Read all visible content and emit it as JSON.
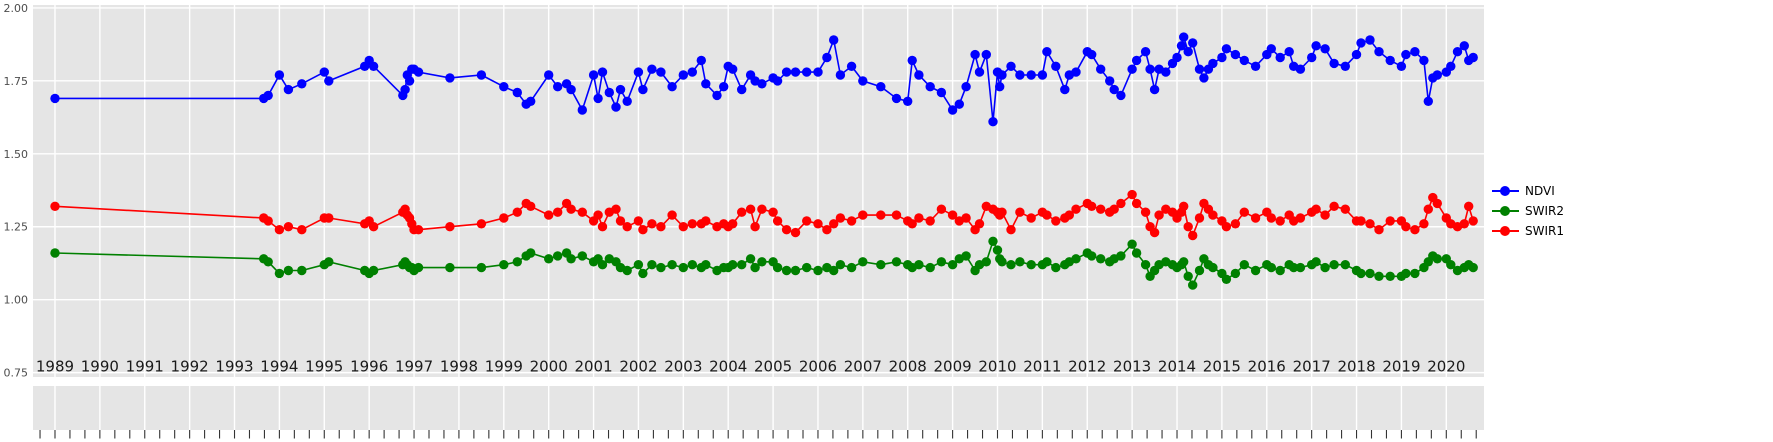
{
  "chart_data": {
    "type": "line",
    "title": "",
    "xlabel": "",
    "ylabel": "",
    "grid": true,
    "panel_background": "#E5E5E5",
    "gridline_color": "#FFFFFF",
    "tick_label_color": "#4d4d4d",
    "x_label_color": "#1a1a1a",
    "xlim": [
      1988.51,
      2020.84
    ],
    "ylim": [
      0.735,
      2.01
    ],
    "x_ticks": [
      1989,
      1990,
      1991,
      1992,
      1993,
      1994,
      1995,
      1996,
      1997,
      1998,
      1999,
      2000,
      2001,
      2002,
      2003,
      2004,
      2005,
      2006,
      2007,
      2008,
      2009,
      2010,
      2011,
      2012,
      2013,
      2014,
      2015,
      2016,
      2017,
      2018,
      2019,
      2020
    ],
    "y_ticks": [
      2.0,
      1.75,
      1.5,
      1.25,
      1.0,
      0.75
    ],
    "y_tick_labels": [
      "2.00",
      "1.75",
      "1.50",
      "1.25",
      "1.00",
      "0.75"
    ],
    "legend": {
      "position": "right",
      "entries": [
        "NDVI",
        "SWIR2",
        "SWIR1"
      ]
    },
    "x": [
      1989.0,
      1993.65,
      1993.75,
      1994.0,
      1994.2,
      1994.5,
      1995.0,
      1995.1,
      1995.9,
      1996.0,
      1996.1,
      1996.75,
      1996.8,
      1996.85,
      1996.9,
      1996.95,
      1997.0,
      1997.1,
      1997.8,
      1998.5,
      1999.0,
      1999.3,
      1999.5,
      1999.6,
      2000.0,
      2000.2,
      2000.4,
      2000.5,
      2000.75,
      2001.0,
      2001.1,
      2001.2,
      2001.35,
      2001.5,
      2001.6,
      2001.75,
      2002.0,
      2002.1,
      2002.3,
      2002.5,
      2002.75,
      2003.0,
      2003.2,
      2003.4,
      2003.5,
      2003.75,
      2003.9,
      2004.0,
      2004.1,
      2004.3,
      2004.5,
      2004.6,
      2004.75,
      2005.0,
      2005.1,
      2005.3,
      2005.5,
      2005.75,
      2006.0,
      2006.2,
      2006.35,
      2006.5,
      2006.75,
      2007.0,
      2007.4,
      2007.75,
      2008.0,
      2008.1,
      2008.25,
      2008.5,
      2008.75,
      2009.0,
      2009.15,
      2009.3,
      2009.5,
      2009.6,
      2009.75,
      2009.9,
      2010.0,
      2010.05,
      2010.1,
      2010.3,
      2010.5,
      2010.75,
      2011.0,
      2011.1,
      2011.3,
      2011.5,
      2011.6,
      2011.75,
      2012.0,
      2012.1,
      2012.3,
      2012.5,
      2012.6,
      2012.75,
      2013.0,
      2013.1,
      2013.3,
      2013.4,
      2013.5,
      2013.6,
      2013.75,
      2013.9,
      2014.0,
      2014.1,
      2014.15,
      2014.25,
      2014.35,
      2014.5,
      2014.6,
      2014.7,
      2014.8,
      2015.0,
      2015.1,
      2015.3,
      2015.5,
      2015.75,
      2016.0,
      2016.1,
      2016.3,
      2016.5,
      2016.6,
      2016.75,
      2017.0,
      2017.1,
      2017.3,
      2017.5,
      2017.75,
      2018.0,
      2018.1,
      2018.3,
      2018.5,
      2018.75,
      2019.0,
      2019.1,
      2019.3,
      2019.5,
      2019.6,
      2019.7,
      2019.8,
      2020.0,
      2020.1,
      2020.25,
      2020.4,
      2020.5,
      2020.6
    ],
    "series": [
      {
        "name": "NDVI",
        "color": "#0000FF",
        "values": [
          1.69,
          1.69,
          1.7,
          1.77,
          1.72,
          1.74,
          1.78,
          1.75,
          1.8,
          1.82,
          1.8,
          1.7,
          1.72,
          1.77,
          1.75,
          1.79,
          1.79,
          1.78,
          1.76,
          1.77,
          1.73,
          1.71,
          1.67,
          1.68,
          1.77,
          1.73,
          1.74,
          1.72,
          1.65,
          1.77,
          1.69,
          1.78,
          1.71,
          1.66,
          1.72,
          1.68,
          1.78,
          1.72,
          1.79,
          1.78,
          1.73,
          1.77,
          1.78,
          1.82,
          1.74,
          1.7,
          1.73,
          1.8,
          1.79,
          1.72,
          1.77,
          1.75,
          1.74,
          1.76,
          1.75,
          1.78,
          1.78,
          1.78,
          1.78,
          1.83,
          1.89,
          1.77,
          1.8,
          1.75,
          1.73,
          1.69,
          1.68,
          1.82,
          1.77,
          1.73,
          1.71,
          1.65,
          1.67,
          1.73,
          1.84,
          1.78,
          1.84,
          1.61,
          1.78,
          1.73,
          1.77,
          1.8,
          1.77,
          1.77,
          1.77,
          1.85,
          1.8,
          1.72,
          1.77,
          1.78,
          1.85,
          1.84,
          1.79,
          1.75,
          1.72,
          1.7,
          1.79,
          1.82,
          1.85,
          1.79,
          1.72,
          1.79,
          1.78,
          1.81,
          1.83,
          1.87,
          1.9,
          1.85,
          1.88,
          1.79,
          1.76,
          1.79,
          1.81,
          1.83,
          1.86,
          1.84,
          1.82,
          1.8,
          1.84,
          1.86,
          1.83,
          1.85,
          1.8,
          1.79,
          1.83,
          1.87,
          1.86,
          1.81,
          1.8,
          1.84,
          1.88,
          1.89,
          1.85,
          1.82,
          1.8,
          1.84,
          1.85,
          1.82,
          1.68,
          1.76,
          1.77,
          1.78,
          1.8,
          1.85,
          1.87,
          1.82,
          1.83
        ]
      },
      {
        "name": "SWIR2",
        "color": "#008000",
        "values": [
          1.16,
          1.14,
          1.13,
          1.09,
          1.1,
          1.1,
          1.12,
          1.13,
          1.1,
          1.09,
          1.1,
          1.12,
          1.13,
          1.12,
          1.11,
          1.11,
          1.1,
          1.11,
          1.11,
          1.11,
          1.12,
          1.13,
          1.15,
          1.16,
          1.14,
          1.15,
          1.16,
          1.14,
          1.15,
          1.13,
          1.14,
          1.12,
          1.14,
          1.13,
          1.11,
          1.1,
          1.12,
          1.09,
          1.12,
          1.11,
          1.12,
          1.11,
          1.12,
          1.11,
          1.12,
          1.1,
          1.11,
          1.11,
          1.12,
          1.12,
          1.14,
          1.11,
          1.13,
          1.13,
          1.11,
          1.1,
          1.1,
          1.11,
          1.1,
          1.11,
          1.1,
          1.12,
          1.11,
          1.13,
          1.12,
          1.13,
          1.12,
          1.11,
          1.12,
          1.11,
          1.13,
          1.12,
          1.14,
          1.15,
          1.1,
          1.12,
          1.13,
          1.2,
          1.17,
          1.14,
          1.13,
          1.12,
          1.13,
          1.12,
          1.12,
          1.13,
          1.11,
          1.12,
          1.13,
          1.14,
          1.16,
          1.15,
          1.14,
          1.13,
          1.14,
          1.15,
          1.19,
          1.16,
          1.12,
          1.08,
          1.1,
          1.12,
          1.13,
          1.12,
          1.11,
          1.12,
          1.13,
          1.08,
          1.05,
          1.1,
          1.14,
          1.12,
          1.11,
          1.09,
          1.07,
          1.09,
          1.12,
          1.1,
          1.12,
          1.11,
          1.1,
          1.12,
          1.11,
          1.11,
          1.12,
          1.13,
          1.11,
          1.12,
          1.12,
          1.1,
          1.09,
          1.09,
          1.08,
          1.08,
          1.08,
          1.09,
          1.09,
          1.11,
          1.13,
          1.15,
          1.14,
          1.14,
          1.12,
          1.1,
          1.11,
          1.12,
          1.11
        ]
      },
      {
        "name": "SWIR1",
        "color": "#FF0000",
        "values": [
          1.32,
          1.28,
          1.27,
          1.24,
          1.25,
          1.24,
          1.28,
          1.28,
          1.26,
          1.27,
          1.25,
          1.3,
          1.31,
          1.29,
          1.28,
          1.26,
          1.24,
          1.24,
          1.25,
          1.26,
          1.28,
          1.3,
          1.33,
          1.32,
          1.29,
          1.3,
          1.33,
          1.31,
          1.3,
          1.27,
          1.29,
          1.25,
          1.3,
          1.31,
          1.27,
          1.25,
          1.27,
          1.24,
          1.26,
          1.25,
          1.29,
          1.25,
          1.26,
          1.26,
          1.27,
          1.25,
          1.26,
          1.25,
          1.26,
          1.3,
          1.31,
          1.25,
          1.31,
          1.3,
          1.27,
          1.24,
          1.23,
          1.27,
          1.26,
          1.24,
          1.26,
          1.28,
          1.27,
          1.29,
          1.29,
          1.29,
          1.27,
          1.26,
          1.28,
          1.27,
          1.31,
          1.29,
          1.27,
          1.28,
          1.24,
          1.26,
          1.32,
          1.31,
          1.3,
          1.29,
          1.3,
          1.24,
          1.3,
          1.28,
          1.3,
          1.29,
          1.27,
          1.28,
          1.29,
          1.31,
          1.33,
          1.32,
          1.31,
          1.3,
          1.31,
          1.33,
          1.36,
          1.33,
          1.3,
          1.25,
          1.23,
          1.29,
          1.31,
          1.3,
          1.28,
          1.3,
          1.32,
          1.25,
          1.22,
          1.28,
          1.33,
          1.31,
          1.29,
          1.27,
          1.25,
          1.26,
          1.3,
          1.28,
          1.3,
          1.28,
          1.27,
          1.29,
          1.27,
          1.28,
          1.3,
          1.31,
          1.29,
          1.32,
          1.31,
          1.27,
          1.27,
          1.26,
          1.24,
          1.27,
          1.27,
          1.25,
          1.24,
          1.26,
          1.31,
          1.35,
          1.33,
          1.28,
          1.26,
          1.25,
          1.26,
          1.32,
          1.27
        ]
      }
    ]
  }
}
